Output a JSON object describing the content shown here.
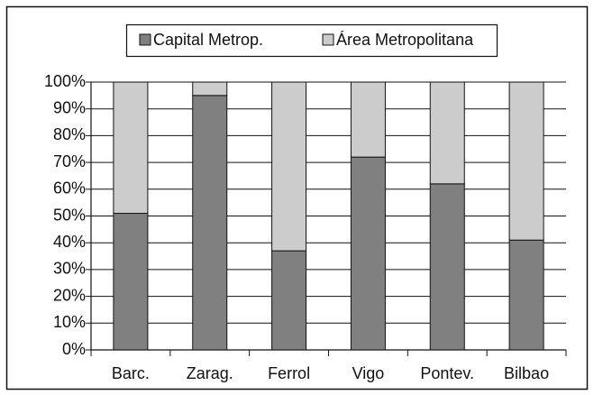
{
  "chart_data": {
    "type": "stacked_bar",
    "categories": [
      "Barc.",
      "Zarag.",
      "Ferrol",
      "Vigo",
      "Pontev.",
      "Bilbao"
    ],
    "series": [
      {
        "name": "Capital Metrop.",
        "color": "#808080",
        "values": [
          51,
          95,
          37,
          72,
          62,
          41
        ]
      },
      {
        "name": "Área Metropolitana",
        "color": "#cccccc",
        "values": [
          49,
          5,
          63,
          28,
          38,
          59
        ]
      }
    ],
    "ylim": [
      0,
      100
    ],
    "yticks": [
      {
        "value": 0,
        "label": "0%"
      },
      {
        "value": 10,
        "label": "10%"
      },
      {
        "value": 20,
        "label": "20%"
      },
      {
        "value": 30,
        "label": "30%"
      },
      {
        "value": 40,
        "label": "40%"
      },
      {
        "value": 50,
        "label": "50%"
      },
      {
        "value": 60,
        "label": "60%"
      },
      {
        "value": 70,
        "label": "70%"
      },
      {
        "value": 80,
        "label": "80%"
      },
      {
        "value": 90,
        "label": "90%"
      },
      {
        "value": 100,
        "label": "100%"
      }
    ],
    "grid": true,
    "legend": "top"
  }
}
